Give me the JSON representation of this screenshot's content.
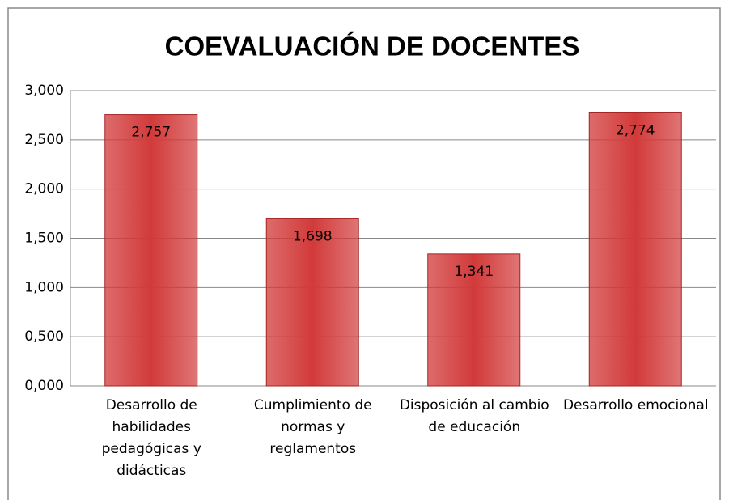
{
  "chart_data": {
    "type": "bar",
    "title": "COEVALUACIÓN DE DOCENTES",
    "categories": [
      "Desarrollo de habilidades pedagógicas y didácticas",
      "Cumplimiento de normas y reglamentos",
      "Disposición al cambio de educación",
      "Desarrollo emocional"
    ],
    "values": [
      2.757,
      1.698,
      1.341,
      2.774
    ],
    "value_labels": [
      "2,757",
      "1,698",
      "1,341",
      "2,774"
    ],
    "color": "#d23a3a",
    "ylim": [
      0,
      3
    ],
    "yticks": [
      {
        "value": 0,
        "label": "0,000"
      },
      {
        "value": 0.5,
        "label": "0,500"
      },
      {
        "value": 1,
        "label": "1,000"
      },
      {
        "value": 1.5,
        "label": "1,500"
      },
      {
        "value": 2,
        "label": "2,000"
      },
      {
        "value": 2.5,
        "label": "2,500"
      },
      {
        "value": 3,
        "label": "3,000"
      }
    ],
    "grid": true
  }
}
